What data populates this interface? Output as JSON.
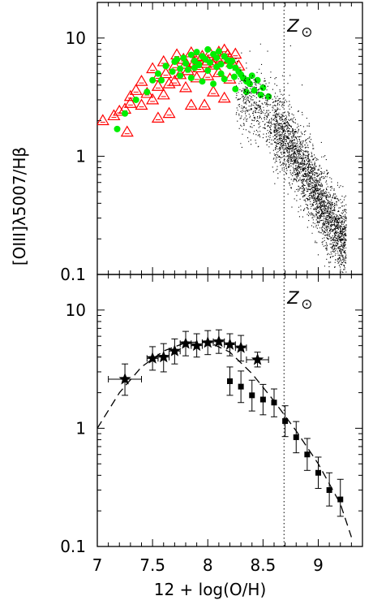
{
  "chart_data": [
    {
      "type": "scatter",
      "panel": "top",
      "xlabel": "12 + log(O/H)",
      "ylabel": "[OIII]λ5007/Hβ",
      "y_scale": "log",
      "xlim": [
        7.0,
        9.4
      ],
      "ylim": [
        0.1,
        20
      ],
      "x_ticks": [
        "7",
        "7.5",
        "8",
        "8.5",
        "9"
      ],
      "y_ticks": [
        "0.1",
        "1",
        "10"
      ],
      "annotations": [
        {
          "text": "Z",
          "symbol": "⊙",
          "x": 8.69
        }
      ],
      "solar_line_x": 8.69,
      "series": [
        {
          "marker": "triangle",
          "color": "#ff0000",
          "x": [
            7.05,
            7.15,
            7.2,
            7.25,
            7.27,
            7.3,
            7.3,
            7.35,
            7.4,
            7.45,
            7.5,
            7.55,
            7.55,
            7.6,
            7.62,
            7.65,
            7.7,
            7.72,
            7.75,
            7.78,
            7.8,
            7.82,
            7.85,
            7.88,
            7.9,
            7.92,
            7.95,
            7.98,
            8.0,
            8.02,
            8.05,
            8.08,
            8.1,
            8.12,
            8.15,
            8.18,
            8.2,
            8.22,
            8.25,
            8.28,
            7.4,
            7.5,
            7.6,
            7.7,
            7.8,
            7.9,
            8.0,
            8.1,
            8.2,
            7.55,
            7.65,
            7.85,
            8.05,
            8.15,
            7.97
          ],
          "y": [
            2.0,
            2.2,
            2.4,
            2.5,
            1.6,
            2.8,
            3.2,
            3.6,
            4.3,
            3.4,
            5.5,
            4.7,
            3.9,
            6.3,
            5.0,
            4.1,
            5.8,
            7.2,
            4.9,
            6.6,
            6.0,
            5.3,
            7.5,
            6.2,
            6.9,
            5.6,
            7.0,
            6.1,
            6.4,
            7.4,
            5.9,
            6.8,
            7.6,
            6.6,
            7.9,
            7.2,
            6.7,
            6.2,
            7.3,
            5.8,
            2.7,
            3.0,
            3.3,
            4.3,
            3.8,
            4.6,
            4.8,
            5.1,
            4.5,
            2.1,
            2.3,
            2.7,
            3.5,
            3.1,
            2.7
          ]
        },
        {
          "marker": "circle",
          "color": "#00ee00",
          "x": [
            7.18,
            7.25,
            7.35,
            7.45,
            7.5,
            7.55,
            7.58,
            7.62,
            7.68,
            7.7,
            7.75,
            7.78,
            7.8,
            7.82,
            7.85,
            7.88,
            7.9,
            7.92,
            7.95,
            7.98,
            8.0,
            8.02,
            8.05,
            8.08,
            8.1,
            8.12,
            8.15,
            8.18,
            8.2,
            8.22,
            8.25,
            8.28,
            8.3,
            8.32,
            8.35,
            8.38,
            8.4,
            8.42,
            8.45,
            8.5,
            8.55,
            7.75,
            7.85,
            7.95,
            8.05,
            8.15,
            8.25,
            8.35,
            7.88,
            8.0,
            8.12,
            8.24,
            8.36,
            8.48,
            7.72,
            7.92,
            8.08
          ],
          "y": [
            1.7,
            2.3,
            3.0,
            3.5,
            4.4,
            5.0,
            4.4,
            5.8,
            5.2,
            6.3,
            5.5,
            6.8,
            6.1,
            5.4,
            7.2,
            6.4,
            7.6,
            5.9,
            7.0,
            6.6,
            8.0,
            6.2,
            7.3,
            6.8,
            7.7,
            6.0,
            7.0,
            6.5,
            5.8,
            6.4,
            5.6,
            5.2,
            4.9,
            4.6,
            4.3,
            4.1,
            4.8,
            3.6,
            4.4,
            3.8,
            3.2,
            4.8,
            4.6,
            4.3,
            4.1,
            4.5,
            3.7,
            3.5,
            5.6,
            5.3,
            5.0,
            4.7,
            4.4,
            3.3,
            6.6,
            6.0,
            5.7
          ]
        },
        {
          "marker": "point",
          "color": "#000000",
          "name": "",
          "cloud": true,
          "x": [
            8.3,
            8.5,
            8.6,
            8.7,
            8.8,
            8.9,
            9.0,
            9.1,
            9.2
          ],
          "y": [
            3.0,
            2.5,
            1.8,
            1.5,
            1.0,
            0.7,
            0.45,
            0.3,
            0.2
          ]
        }
      ]
    },
    {
      "type": "scatter",
      "panel": "bottom",
      "xlabel": "12 + log(O/H)",
      "ylabel": "[OIII]λ5007/Hβ",
      "y_scale": "log",
      "xlim": [
        7.0,
        9.4
      ],
      "ylim": [
        0.1,
        20
      ],
      "x_ticks": [
        "7",
        "7.5",
        "8",
        "8.5",
        "9"
      ],
      "y_ticks": [
        "0.1",
        "1",
        "10"
      ],
      "annotations": [
        {
          "text": "Z",
          "symbol": "⊙",
          "x": 8.69
        }
      ],
      "solar_line_x": 8.69,
      "series": [
        {
          "marker": "star",
          "color": "#000000",
          "x": [
            7.25,
            7.5,
            7.6,
            7.7,
            7.8,
            7.9,
            8.0,
            8.1,
            8.2,
            8.3,
            8.45
          ],
          "y": [
            2.6,
            3.9,
            4.0,
            4.5,
            5.2,
            5.0,
            5.3,
            5.4,
            5.1,
            4.8,
            3.8
          ],
          "xerr": [
            0.15,
            0.05,
            0.05,
            0.05,
            0.05,
            0.05,
            0.05,
            0.05,
            0.05,
            0.05,
            0.1
          ],
          "yerr_low": [
            0.7,
            0.8,
            1.0,
            1.0,
            1.1,
            1.0,
            1.1,
            1.1,
            1.0,
            1.1,
            0.5
          ],
          "yerr_high": [
            0.9,
            1.0,
            1.2,
            1.2,
            1.4,
            1.3,
            1.4,
            1.4,
            1.2,
            1.3,
            0.6
          ]
        },
        {
          "marker": "square",
          "color": "#000000",
          "x": [
            8.2,
            8.3,
            8.4,
            8.5,
            8.6,
            8.7,
            8.8,
            8.9,
            9.0,
            9.1,
            9.2
          ],
          "y": [
            2.5,
            2.25,
            1.9,
            1.75,
            1.65,
            1.15,
            0.84,
            0.6,
            0.42,
            0.3,
            0.25
          ],
          "yerr_low": [
            0.6,
            0.6,
            0.5,
            0.45,
            0.4,
            0.3,
            0.22,
            0.16,
            0.11,
            0.08,
            0.07
          ],
          "yerr_high": [
            0.8,
            0.8,
            0.65,
            0.6,
            0.5,
            0.4,
            0.3,
            0.22,
            0.15,
            0.12,
            0.12
          ]
        },
        {
          "marker": "dashed-line",
          "color": "#000000",
          "x": [
            7.0,
            7.2,
            7.4,
            7.6,
            7.8,
            8.0,
            8.2,
            8.4,
            8.6,
            8.8,
            9.0,
            9.2,
            9.3
          ],
          "y": [
            1.0,
            2.0,
            3.3,
            4.5,
            5.3,
            5.4,
            4.4,
            2.9,
            1.7,
            0.95,
            0.5,
            0.23,
            0.12
          ]
        }
      ]
    }
  ]
}
